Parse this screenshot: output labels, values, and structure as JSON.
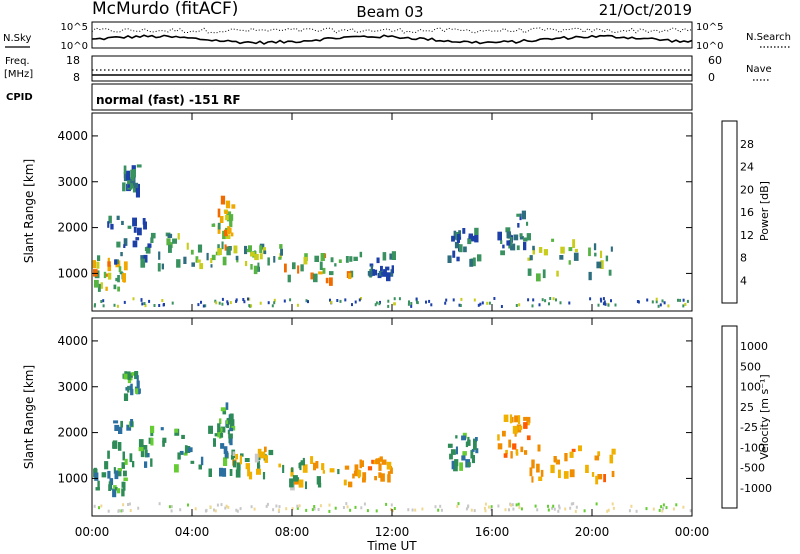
{
  "header": {
    "station": "McMurdo (fitACF)",
    "beam": "Beam 03",
    "date": "21/Oct/2019"
  },
  "top_panel": {
    "left_label": "N.Sky",
    "left_ticks": [
      "10^5",
      "10^0"
    ],
    "right_label": "N.Search",
    "right_ticks": [
      "10^5",
      "10^0"
    ]
  },
  "freq_panel": {
    "left_label_1": "Freq.",
    "left_label_2": "[MHz]",
    "left_ticks": [
      "18",
      "8"
    ],
    "right_label": "Nave",
    "right_ticks": [
      "60",
      "0"
    ]
  },
  "cpid_panel": {
    "label": "CPID",
    "mode_text": "normal (fast) -151 RF"
  },
  "chart_data": [
    {
      "type": "heatmap",
      "name": "power",
      "ylabel": "Slant Range [km]",
      "ylim": [
        180,
        4500
      ],
      "yticks": [
        1000,
        2000,
        3000,
        4000
      ],
      "xlim": [
        0,
        24
      ],
      "colorbar": {
        "label": "Power [dB]",
        "range": [
          0,
          32
        ],
        "ticks": [
          "28",
          "24",
          "20",
          "16",
          "12",
          "8",
          "4"
        ],
        "colors": [
          "#0000ff",
          "#1c3fa8",
          "#2e6d7e",
          "#3a9160",
          "#57b342",
          "#c8cc1a",
          "#f0a800",
          "#f06a00",
          "#ff0000"
        ]
      },
      "echo_regions": [
        {
          "t0": 0.0,
          "t1": 1.3,
          "r0": 700,
          "r1": 1400,
          "level": "high"
        },
        {
          "t0": 0.6,
          "t1": 2.4,
          "r0": 1300,
          "r1": 2300,
          "level": "low"
        },
        {
          "t0": 1.2,
          "t1": 1.8,
          "r0": 2800,
          "r1": 3400,
          "level": "low"
        },
        {
          "t0": 2.4,
          "t1": 5.6,
          "r0": 1200,
          "r1": 2200,
          "level": "mid"
        },
        {
          "t0": 5.0,
          "t1": 5.6,
          "r0": 1500,
          "r1": 2700,
          "level": "high"
        },
        {
          "t0": 5.6,
          "t1": 7.6,
          "r0": 1100,
          "r1": 1700,
          "level": "mid"
        },
        {
          "t0": 7.6,
          "t1": 10.4,
          "r0": 900,
          "r1": 1500,
          "level": "high"
        },
        {
          "t0": 10.4,
          "t1": 12.0,
          "r0": 1000,
          "r1": 1500,
          "level": "low"
        },
        {
          "t0": 14.2,
          "t1": 15.4,
          "r0": 1300,
          "r1": 2000,
          "level": "low"
        },
        {
          "t0": 16.2,
          "t1": 17.4,
          "r0": 1500,
          "r1": 2400,
          "level": "low"
        },
        {
          "t0": 17.4,
          "t1": 20.8,
          "r0": 1000,
          "r1": 1800,
          "level": "mid"
        }
      ]
    },
    {
      "type": "heatmap",
      "name": "velocity",
      "ylabel": "Slant Range [km]",
      "ylim": [
        180,
        4500
      ],
      "yticks": [
        1000,
        2000,
        3000,
        4000
      ],
      "xlim": [
        0,
        24
      ],
      "xticks": [
        "00:00",
        "04:00",
        "08:00",
        "12:00",
        "16:00",
        "20:00",
        "00:00"
      ],
      "xlabel": "Time UT",
      "colorbar": {
        "label": "Velocity [m s⁻¹]",
        "ticks": [
          "1000",
          "500",
          "100",
          "25",
          "-25",
          "-100",
          "-500",
          "-1000"
        ],
        "colors": [
          "#ff0000",
          "#ff5a00",
          "#f08c00",
          "#f0b000",
          "#f0d890",
          "#c8c8c8",
          "#66cc33",
          "#2e8b57",
          "#2a6fa0",
          "#1c3fa8"
        ]
      },
      "echo_regions": [
        {
          "t0": 0.0,
          "t1": 1.3,
          "r0": 700,
          "r1": 1400,
          "level": "neg"
        },
        {
          "t0": 0.6,
          "t1": 2.4,
          "r0": 1300,
          "r1": 2300,
          "level": "neg"
        },
        {
          "t0": 1.2,
          "t1": 1.8,
          "r0": 2800,
          "r1": 3400,
          "level": "neg"
        },
        {
          "t0": 2.4,
          "t1": 5.6,
          "r0": 1200,
          "r1": 2200,
          "level": "neg"
        },
        {
          "t0": 5.0,
          "t1": 5.6,
          "r0": 1500,
          "r1": 2700,
          "level": "neg"
        },
        {
          "t0": 5.6,
          "t1": 7.6,
          "r0": 1100,
          "r1": 1700,
          "level": "mix"
        },
        {
          "t0": 7.6,
          "t1": 10.4,
          "r0": 900,
          "r1": 1500,
          "level": "mix"
        },
        {
          "t0": 10.4,
          "t1": 12.0,
          "r0": 1000,
          "r1": 1500,
          "level": "pos"
        },
        {
          "t0": 14.2,
          "t1": 15.4,
          "r0": 1300,
          "r1": 2000,
          "level": "neg"
        },
        {
          "t0": 16.2,
          "t1": 17.4,
          "r0": 1500,
          "r1": 2400,
          "level": "pos"
        },
        {
          "t0": 17.4,
          "t1": 20.8,
          "r0": 1000,
          "r1": 1800,
          "level": "pos"
        }
      ]
    }
  ]
}
